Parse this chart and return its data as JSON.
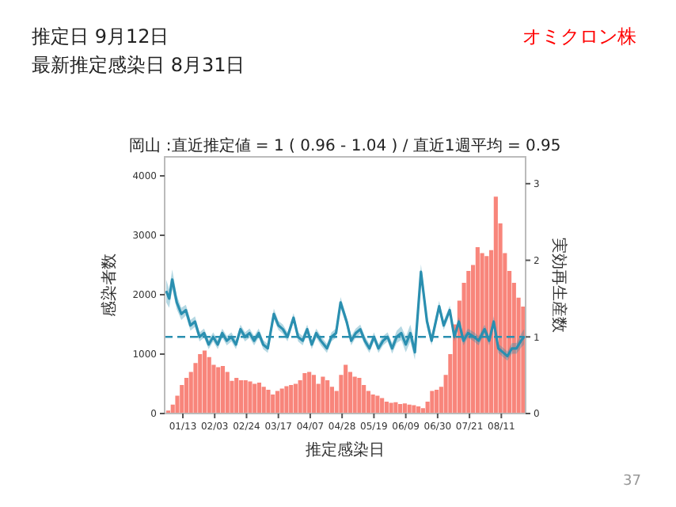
{
  "chart_data": {
    "type": "bar",
    "title": "岡山 :直近推定値 = 1 ( 0.96 - 1.04 ) / 直近1週平均 = 0.95",
    "xlabel": "推定感染日",
    "ylabel": "感染者数",
    "y2label": "実効再生産数",
    "annotations": [
      "推定日  9月12日",
      "最新推定感染日  8月31日",
      "オミクロン株",
      "37"
    ],
    "xlim": [
      "--01-01",
      "--08-27"
    ],
    "xticks": [
      {
        "value": "--01-13",
        "label": "01/13"
      },
      {
        "value": "--02-03",
        "label": "02/03"
      },
      {
        "value": "--02-24",
        "label": "02/24"
      },
      {
        "value": "--03-17",
        "label": "03/17"
      },
      {
        "value": "--04-07",
        "label": "04/07"
      },
      {
        "value": "--04-28",
        "label": "04/28"
      },
      {
        "value": "--05-19",
        "label": "05/19"
      },
      {
        "value": "--06-09",
        "label": "06/09"
      },
      {
        "value": "--06-30",
        "label": "06/30"
      },
      {
        "value": "--07-21",
        "label": "07/21"
      },
      {
        "value": "--08-11",
        "label": "08/11"
      }
    ],
    "ylim": [
      0,
      4320
    ],
    "yticks": [
      0,
      1000,
      2000,
      3000,
      4000
    ],
    "y2lim": [
      0,
      3.35
    ],
    "y2ticks": [
      0,
      1,
      2,
      3
    ],
    "ref_lines": [
      {
        "axis": "y2",
        "value": 1,
        "color": "#2a8fb0",
        "line_style": "dashed"
      }
    ],
    "series": [
      {
        "color": "#f8857b",
        "x": [
          "--01-02",
          "--01-05",
          "--01-08",
          "--01-11",
          "--01-14",
          "--01-17",
          "--01-20",
          "--01-23",
          "--01-26",
          "--01-29",
          "--02-01",
          "--02-04",
          "--02-07",
          "--02-10",
          "--02-13",
          "--02-16",
          "--02-19",
          "--02-22",
          "--02-25",
          "--02-28",
          "--03-03",
          "--03-06",
          "--03-09",
          "--03-12",
          "--03-15",
          "--03-18",
          "--03-21",
          "--03-24",
          "--03-27",
          "--03-30",
          "--04-02",
          "--04-05",
          "--04-08",
          "--04-11",
          "--04-14",
          "--04-17",
          "--04-20",
          "--04-23",
          "--04-26",
          "--04-29",
          "--05-02",
          "--05-05",
          "--05-08",
          "--05-11",
          "--05-14",
          "--05-17",
          "--05-20",
          "--05-23",
          "--05-26",
          "--05-29",
          "--06-01",
          "--06-04",
          "--06-07",
          "--06-10",
          "--06-13",
          "--06-16",
          "--06-19",
          "--06-22",
          "--06-25",
          "--06-28",
          "--07-01",
          "--07-04",
          "--07-07",
          "--07-10",
          "--07-13",
          "--07-16",
          "--07-19",
          "--07-22",
          "--07-25",
          "--07-28",
          "--07-31",
          "--08-03",
          "--08-06",
          "--08-09",
          "--08-12",
          "--08-15",
          "--08-18",
          "--08-21",
          "--08-24"
        ],
        "values": [
          50,
          150,
          300,
          480,
          600,
          700,
          850,
          1000,
          1060,
          950,
          820,
          780,
          800,
          700,
          550,
          600,
          560,
          560,
          540,
          500,
          520,
          450,
          400,
          320,
          380,
          420,
          460,
          480,
          500,
          560,
          680,
          700,
          650,
          500,
          620,
          560,
          450,
          380,
          650,
          820,
          700,
          620,
          600,
          480,
          380,
          320,
          300,
          260,
          200,
          180,
          190,
          160,
          170,
          150,
          140,
          120,
          90,
          200,
          380,
          400,
          450,
          650,
          1000,
          1500,
          1900,
          2200,
          2400,
          2500,
          2800,
          2700,
          2650,
          2750,
          3650,
          3200,
          2700,
          2400,
          2200,
          1950,
          1800
        ]
      },
      {
        "type": "line",
        "axis": "y2",
        "color": "#2a8fb0",
        "x": [
          "--01-02",
          "--01-04",
          "--01-06",
          "--01-09",
          "--01-12",
          "--01-15",
          "--01-18",
          "--01-21",
          "--01-24",
          "--01-27",
          "--01-30",
          "--02-02",
          "--02-05",
          "--02-08",
          "--02-11",
          "--02-14",
          "--02-17",
          "--02-20",
          "--02-23",
          "--02-26",
          "--03-01",
          "--03-04",
          "--03-07",
          "--03-10",
          "--03-14",
          "--03-17",
          "--03-20",
          "--03-23",
          "--03-27",
          "--03-30",
          "--04-02",
          "--04-05",
          "--04-08",
          "--04-11",
          "--04-14",
          "--04-18",
          "--04-21",
          "--04-24",
          "--04-27",
          "--05-01",
          "--05-04",
          "--05-07",
          "--05-10",
          "--05-13",
          "--05-16",
          "--05-19",
          "--05-22",
          "--05-25",
          "--05-28",
          "--05-31",
          "--06-03",
          "--06-06",
          "--06-09",
          "--06-12",
          "--06-15",
          "--06-19",
          "--06-23",
          "--06-26",
          "--07-01",
          "--07-04",
          "--07-08",
          "--07-11",
          "--07-14",
          "--07-17",
          "--07-20",
          "--07-24",
          "--07-27",
          "--07-31",
          "--08-03",
          "--08-06",
          "--08-09",
          "--08-12",
          "--08-15",
          "--08-18",
          "--08-21",
          "--08-24",
          "--08-26"
        ],
        "values": [
          1.6,
          1.5,
          1.75,
          1.45,
          1.3,
          1.35,
          1.15,
          1.2,
          1.0,
          1.05,
          0.9,
          1.0,
          0.9,
          1.05,
          0.95,
          1.0,
          0.9,
          1.1,
          1.0,
          1.05,
          0.95,
          1.05,
          0.9,
          0.85,
          1.3,
          1.15,
          1.1,
          1.0,
          1.25,
          1.0,
          0.95,
          1.1,
          0.9,
          1.05,
          0.95,
          0.85,
          1.0,
          1.05,
          1.45,
          1.2,
          0.95,
          1.05,
          1.1,
          0.95,
          0.85,
          1.0,
          0.85,
          0.95,
          1.0,
          0.85,
          1.0,
          1.05,
          0.9,
          1.05,
          0.8,
          1.85,
          1.2,
          0.95,
          1.4,
          1.15,
          1.35,
          1.0,
          1.2,
          0.95,
          1.05,
          1.0,
          0.95,
          1.1,
          0.95,
          1.2,
          0.85,
          0.8,
          0.75,
          0.85,
          0.85,
          0.95,
          1.0
        ],
        "lower": [
          1.45,
          1.38,
          1.62,
          1.36,
          1.22,
          1.28,
          1.08,
          1.13,
          0.94,
          0.99,
          0.84,
          0.94,
          0.84,
          0.99,
          0.89,
          0.94,
          0.84,
          1.04,
          0.94,
          0.99,
          0.89,
          0.99,
          0.84,
          0.79,
          1.23,
          1.09,
          1.04,
          0.94,
          1.19,
          0.94,
          0.89,
          1.04,
          0.84,
          0.99,
          0.89,
          0.79,
          0.94,
          0.99,
          1.38,
          1.14,
          0.89,
          0.99,
          1.04,
          0.89,
          0.79,
          0.94,
          0.79,
          0.89,
          0.94,
          0.78,
          0.92,
          0.96,
          0.8,
          0.94,
          0.7,
          1.75,
          1.12,
          0.89,
          1.33,
          1.09,
          1.29,
          0.94,
          1.14,
          0.89,
          0.99,
          0.94,
          0.89,
          1.04,
          0.89,
          1.13,
          0.79,
          0.74,
          0.69,
          0.78,
          0.78,
          0.86,
          0.9
        ],
        "upper": [
          1.75,
          1.62,
          1.88,
          1.54,
          1.38,
          1.42,
          1.22,
          1.27,
          1.06,
          1.11,
          0.96,
          1.06,
          0.96,
          1.11,
          1.01,
          1.06,
          0.96,
          1.16,
          1.06,
          1.11,
          1.01,
          1.11,
          0.96,
          0.91,
          1.37,
          1.21,
          1.16,
          1.06,
          1.31,
          1.06,
          1.01,
          1.16,
          0.96,
          1.11,
          1.01,
          0.91,
          1.06,
          1.11,
          1.52,
          1.26,
          1.01,
          1.11,
          1.16,
          1.01,
          0.91,
          1.06,
          0.91,
          1.01,
          1.06,
          0.92,
          1.08,
          1.14,
          1.0,
          1.16,
          0.9,
          1.95,
          1.28,
          1.01,
          1.47,
          1.21,
          1.41,
          1.06,
          1.26,
          1.01,
          1.11,
          1.06,
          1.01,
          1.16,
          1.01,
          1.27,
          0.91,
          0.86,
          0.81,
          0.92,
          0.92,
          1.04,
          1.1
        ]
      }
    ]
  }
}
